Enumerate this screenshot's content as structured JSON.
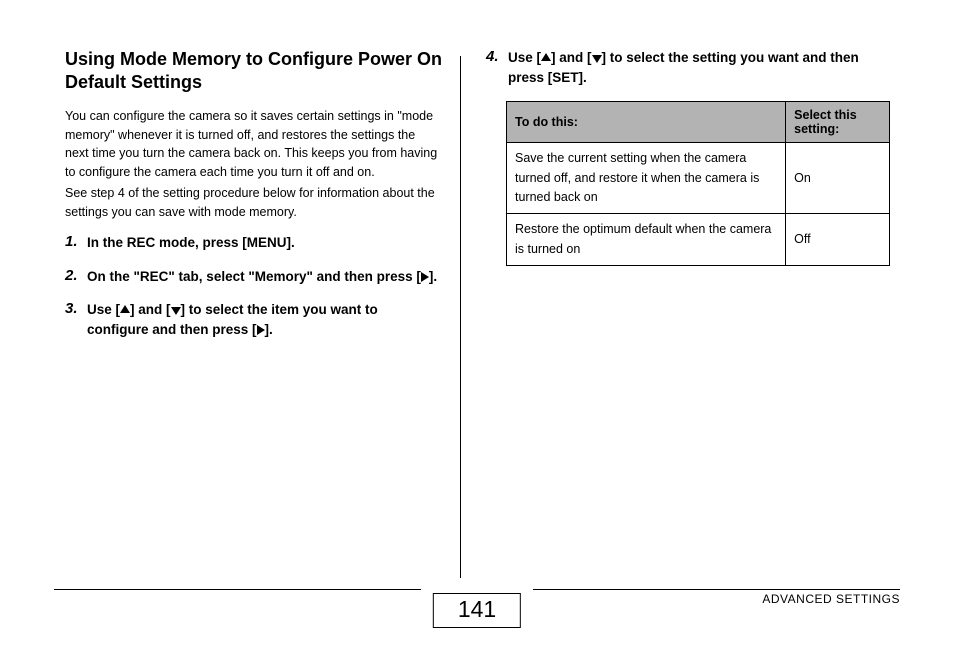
{
  "heading": "Using Mode Memory to Configure Power On Default Settings",
  "para1": "You can configure the camera so it saves certain settings in \"mode memory\" whenever it is turned off, and restores the settings the next time you turn the camera back on. This keeps you from having to configure the camera each time you turn it off and on.",
  "para2": "See step 4 of the setting procedure below for information about the settings you can save with mode memory.",
  "steps": {
    "s1": {
      "num": "1.",
      "text": "In the REC mode, press [MENU]."
    },
    "s2": {
      "num": "2.",
      "pre": "On the \"REC\" tab, select \"Memory\" and then press [",
      "post": "]."
    },
    "s3": {
      "num": "3.",
      "pre": "Use [",
      "mid": "] and [",
      "mid2": "] to select the item you want to configure and then press [",
      "post": "]."
    },
    "s4": {
      "num": "4.",
      "pre": "Use [",
      "mid": "] and [",
      "post": "] to select the setting you want and then press [SET]."
    }
  },
  "table": {
    "h1": "To do this:",
    "h2": "Select this setting:",
    "r1a": "Save the current setting when the camera turned off, and restore it when the camera is turned back on",
    "r1b": "On",
    "r2a": "Restore the optimum default when the camera is turned on",
    "r2b": "Off"
  },
  "footer": {
    "pageNum": "141",
    "section": "ADVANCED SETTINGS"
  },
  "colors": {
    "tableHeaderBg": "#b3b3b3",
    "text": "#000000",
    "bg": "#ffffff"
  },
  "typography": {
    "headingSize": 18,
    "bodySize": 12.5,
    "stepSize": 13.5,
    "footerSize": 12,
    "pageNumSize": 23
  }
}
